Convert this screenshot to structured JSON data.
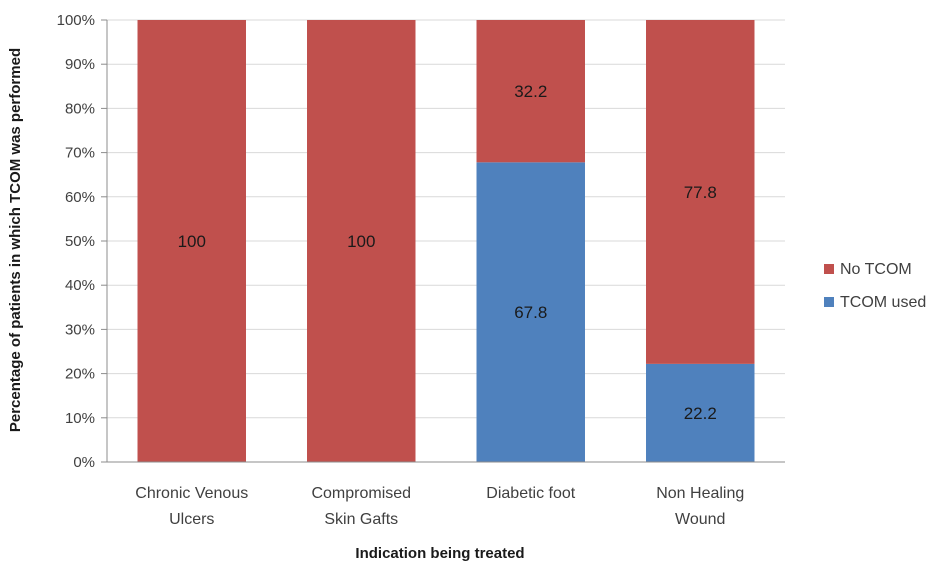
{
  "chart_data": {
    "type": "bar",
    "stacked": true,
    "title": "",
    "xlabel": "Indication being treated",
    "ylabel": "Percentage of patients in which TCOM was performed",
    "ylim": [
      0,
      100
    ],
    "yticks": [
      "0%",
      "10%",
      "20%",
      "30%",
      "40%",
      "50%",
      "60%",
      "70%",
      "80%",
      "90%",
      "100%"
    ],
    "grid": true,
    "legend_position": "right",
    "categories": [
      [
        "Chronic Venous",
        "Ulcers"
      ],
      [
        "Compromised",
        "Skin Gafts"
      ],
      [
        "Diabetic foot"
      ],
      [
        "Non Healing",
        "Wound"
      ]
    ],
    "series": [
      {
        "name": "TCOM used",
        "color": "#4f81bd",
        "values": [
          0,
          0,
          67.8,
          22.2
        ],
        "labels": [
          "",
          "",
          "67.8",
          "22.2"
        ]
      },
      {
        "name": "No TCOM",
        "color": "#c0504d",
        "values": [
          100,
          100,
          32.2,
          77.8
        ],
        "labels": [
          "100",
          "100",
          "32.2",
          "77.8"
        ]
      }
    ]
  }
}
